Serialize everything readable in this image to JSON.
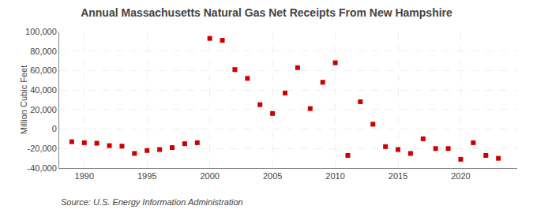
{
  "chart_data": {
    "type": "scatter",
    "title": "Annual Massachusetts Natural Gas Net Receipts From New Hampshire",
    "ylabel": "Million Cubic Feet",
    "annotations": [
      "Source: U.S. Energy Information Administration"
    ],
    "x": [
      1989,
      1990,
      1991,
      1992,
      1993,
      1994,
      1995,
      1996,
      1997,
      1998,
      1999,
      2000,
      2001,
      2002,
      2003,
      2004,
      2005,
      2006,
      2007,
      2008,
      2009,
      2010,
      2011,
      2012,
      2013,
      2014,
      2015,
      2016,
      2017,
      2018,
      2019,
      2020,
      2021,
      2022,
      2023
    ],
    "values": [
      -13000,
      -14000,
      -14500,
      -17000,
      -17500,
      -25000,
      -22000,
      -21000,
      -19000,
      -15000,
      -14000,
      93000,
      91000,
      61000,
      52000,
      25000,
      16000,
      37000,
      63000,
      21000,
      48000,
      68000,
      -27000,
      28000,
      5000,
      -18000,
      -21000,
      -25000,
      -10000,
      -20000,
      -20000,
      -31000,
      -14000,
      -27000,
      -30000
    ],
    "color": "#cc0000",
    "marker": "square",
    "xlim": [
      1988.0,
      2024.5
    ],
    "xticks": [
      1990,
      1995,
      2000,
      2005,
      2010,
      2015,
      2020
    ],
    "ylim": [
      -40000,
      100000
    ],
    "yticks": [
      {
        "value": -40000,
        "label": "-40,000"
      },
      {
        "value": -20000,
        "label": "-20,000"
      },
      0,
      {
        "value": 20000,
        "label": "20,000"
      },
      {
        "value": 40000,
        "label": "40,000"
      },
      {
        "value": 60000,
        "label": "60,000"
      },
      {
        "value": 80000,
        "label": "80,000"
      },
      {
        "value": 100000,
        "label": "100,000"
      }
    ],
    "grid": true
  }
}
